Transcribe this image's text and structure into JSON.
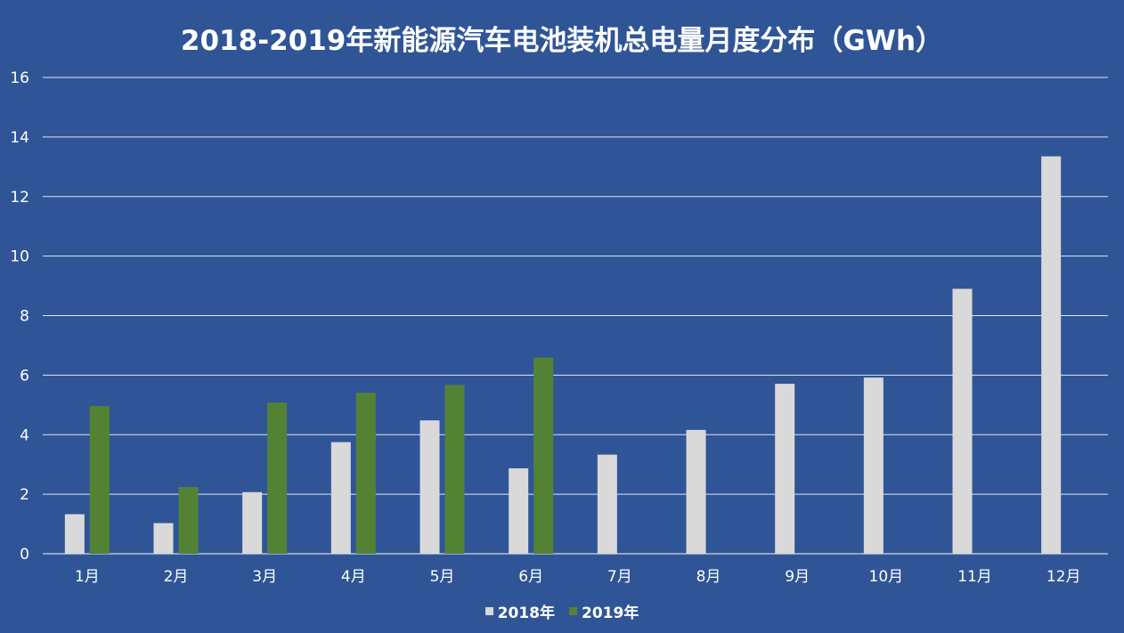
{
  "chart_data": {
    "type": "bar",
    "title": "2018-2019年新能源汽车电池装机总电量月度分布（GWh）",
    "categories": [
      "1月",
      "2月",
      "3月",
      "4月",
      "5月",
      "6月",
      "7月",
      "8月",
      "9月",
      "10月",
      "11月",
      "12月"
    ],
    "series": [
      {
        "name": "2018年",
        "color": "#D9D9D9",
        "values": [
          1.33,
          1.03,
          2.07,
          3.75,
          4.48,
          2.87,
          3.33,
          4.16,
          5.71,
          5.92,
          8.9,
          13.35
        ]
      },
      {
        "name": "2019年",
        "color": "#548235",
        "values": [
          4.96,
          2.24,
          5.08,
          5.41,
          5.67,
          6.59,
          null,
          null,
          null,
          null,
          null,
          null
        ]
      }
    ],
    "ylim": [
      0,
      16
    ],
    "yticks": [
      0,
      2,
      4,
      6,
      8,
      10,
      12,
      14,
      16
    ],
    "grid": true,
    "legend_position": "bottom",
    "background": "#2F5597",
    "gridline_color": "#FFFFFF"
  }
}
